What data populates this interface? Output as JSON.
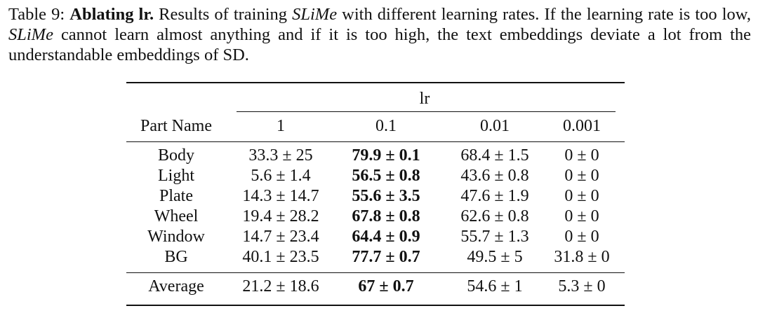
{
  "caption": {
    "label": "Table 9:",
    "title": "Ablating lr.",
    "text_1": "Results of training",
    "method_1": "SLiMe",
    "text_2": "with different learning rates. If the learning rate is too low,",
    "method_2": "SLiMe",
    "text_3": "cannot learn almost anything and if it is too high, the text embeddings deviate a lot from the understandable embeddings of SD."
  },
  "table": {
    "group_header": "lr",
    "columns": [
      "Part Name",
      "1",
      "0.1",
      "0.01",
      "0.001"
    ],
    "rows": [
      {
        "part": "Body",
        "v1": "33.3 ± 25",
        "v01": "79.9 ± 0.1",
        "v001": "68.4 ± 1.5",
        "v0001": "0 ± 0"
      },
      {
        "part": "Light",
        "v1": "5.6 ± 1.4",
        "v01": "56.5 ± 0.8",
        "v001": "43.6 ± 0.8",
        "v0001": "0 ± 0"
      },
      {
        "part": "Plate",
        "v1": "14.3 ± 14.7",
        "v01": "55.6 ± 3.5",
        "v001": "47.6 ± 1.9",
        "v0001": "0 ± 0"
      },
      {
        "part": "Wheel",
        "v1": "19.4 ± 28.2",
        "v01": "67.8 ± 0.8",
        "v001": "62.6 ± 0.8",
        "v0001": "0 ± 0"
      },
      {
        "part": "Window",
        "v1": "14.7 ± 23.4",
        "v01": "64.4 ± 0.9",
        "v001": "55.7 ± 1.3",
        "v0001": "0 ± 0"
      },
      {
        "part": "BG",
        "v1": "40.1 ± 23.5",
        "v01": "77.7 ± 0.7",
        "v001": "49.5 ± 5",
        "v0001": "31.8 ± 0"
      }
    ],
    "average": {
      "part": "Average",
      "v1": "21.2 ± 18.6",
      "v01": "67 ± 0.7",
      "v001": "54.6 ± 1",
      "v0001": "5.3 ± 0"
    }
  }
}
